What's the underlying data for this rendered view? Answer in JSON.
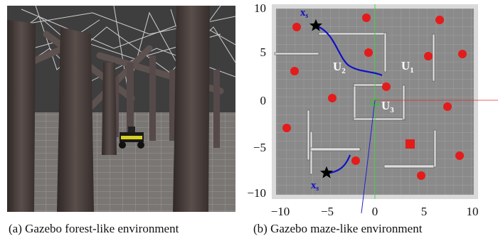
{
  "panel_a": {
    "caption": "(a) Gazebo forest-like environment"
  },
  "panel_b": {
    "caption": "(b) Gazebo maze-like environment",
    "x_ticks": [
      "−10",
      "−5",
      "0",
      "5",
      "10"
    ],
    "y_ticks": [
      "10",
      "5",
      "0",
      "−5",
      "−10"
    ],
    "labels": {
      "xs_top": "x",
      "xs_top_sub": "s",
      "xs_bottom": "x",
      "xs_bottom_sub": "s",
      "u1": "U",
      "u1_sub": "1",
      "u2": "U",
      "u2_sub": "2",
      "u3": "U",
      "u3_sub": "3"
    }
  },
  "colors": {
    "maze_floor": "#8a8a8a",
    "maze_wall": "#d9d9d9",
    "obstacle": "#e41b1b",
    "path": "#1010c8",
    "forest_sky": "#3e3e3e",
    "forest_floor": "#7a7674",
    "trunk": "#4f4543"
  }
}
